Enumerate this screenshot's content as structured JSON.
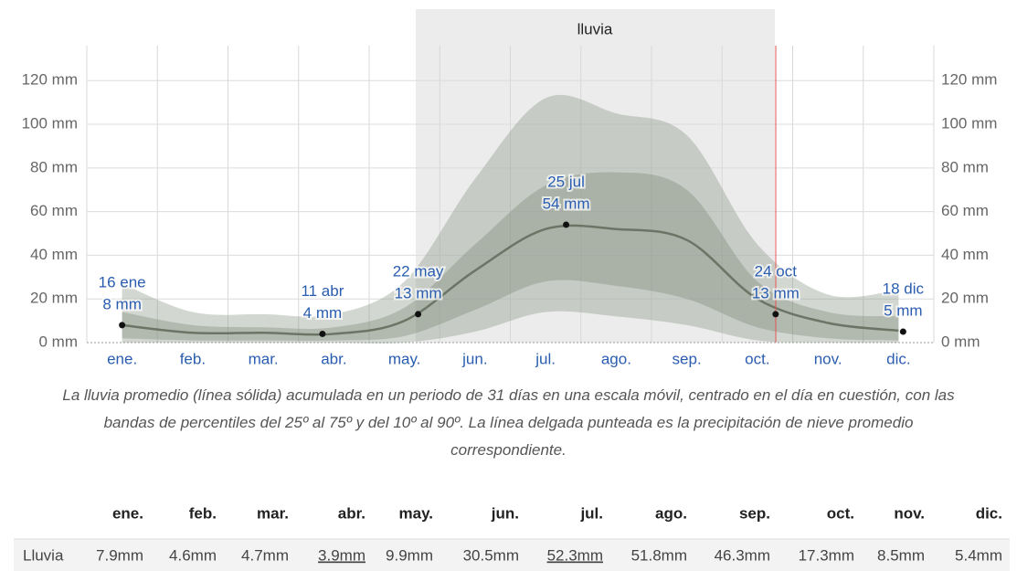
{
  "chart_data": {
    "type": "band-line",
    "season_label": "lluvia",
    "categories": [
      "ene.",
      "feb.",
      "mar.",
      "abr.",
      "may.",
      "jun.",
      "jul.",
      "ago.",
      "sep.",
      "oct.",
      "nov.",
      "dic."
    ],
    "ylim": [
      0,
      136
    ],
    "yticks": [
      {
        "value": 0,
        "label": "0 mm"
      },
      {
        "value": 20,
        "label": "20 mm"
      },
      {
        "value": 40,
        "label": "40 mm"
      },
      {
        "value": 60,
        "label": "60 mm"
      },
      {
        "value": 80,
        "label": "80 mm"
      },
      {
        "value": 100,
        "label": "100 mm"
      },
      {
        "value": 120,
        "label": "120 mm"
      }
    ],
    "bands": [
      {
        "color": "#8a9786",
        "lower": [
          0,
          0,
          0,
          0,
          0,
          5,
          14,
          12,
          8,
          1,
          0,
          0
        ],
        "upper": [
          27,
          14,
          13,
          13,
          28,
          75,
          112,
          105,
          95,
          45,
          22,
          24
        ]
      },
      {
        "color": "#7d8a79",
        "lower": [
          2,
          1,
          1,
          1,
          3,
          15,
          28,
          26,
          20,
          7,
          2,
          1
        ],
        "upper": [
          14,
          8,
          7,
          7,
          16,
          45,
          72,
          78,
          70,
          28,
          14,
          12
        ]
      }
    ],
    "series": [
      {
        "color": "#6b7566",
        "values": [
          8,
          4.5,
          4.5,
          4,
          10,
          33,
          52,
          52,
          47,
          20,
          9,
          5.5
        ]
      }
    ],
    "annotations": [
      {
        "label": "16 ene",
        "value": 8,
        "value_label": "8 mm"
      },
      {
        "label": "11 abr",
        "value": 4,
        "value_label": "4 mm"
      },
      {
        "label": "22 may",
        "value": 13,
        "value_label": "13 mm"
      },
      {
        "label": "25 jul",
        "value": 54,
        "value_label": "54 mm"
      },
      {
        "label": "24 oct",
        "value": 13,
        "value_label": "13 mm"
      },
      {
        "label": "18 dic",
        "value": 5,
        "value_label": "5 mm"
      }
    ],
    "caption": "La lluvia promedio (línea sólida) acumulada en un periodo de 31 días en una escala móvil, centrado en el día en cuestión, con las bandas de percentiles del 25º al 75º y del 10º al 90º. La línea delgada punteada es la precipitación de nieve promedio correspondiente."
  },
  "table": {
    "header": [
      "ene.",
      "feb.",
      "mar.",
      "abr.",
      "may.",
      "jun.",
      "jul.",
      "ago.",
      "sep.",
      "oct.",
      "nov.",
      "dic."
    ],
    "row_label": "Lluvia",
    "row": [
      "7.9mm",
      "4.6mm",
      "4.7mm",
      "3.9mm",
      "9.9mm",
      "30.5mm",
      "52.3mm",
      "51.8mm",
      "46.3mm",
      "17.3mm",
      "8.5mm",
      "5.4mm"
    ]
  }
}
